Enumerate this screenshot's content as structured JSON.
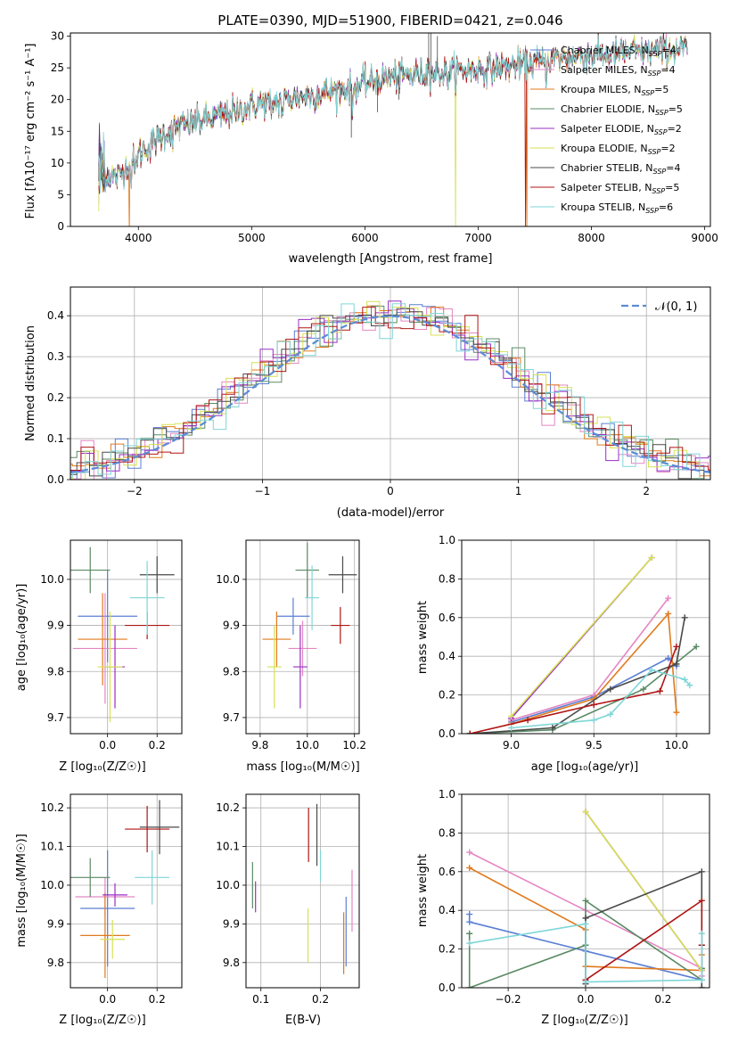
{
  "chart_data": [
    {
      "type": "line",
      "id": "spectrum",
      "title": "PLATE=0390, MJD=51900, FIBERID=0421, z=0.046",
      "xlabel": "wavelength [Angstrom, rest frame]",
      "ylabel": "Flux [fλ10⁻¹⁷ erg cm⁻² s⁻¹ A⁻¹]",
      "xlim": [
        3400,
        9050
      ],
      "ylim": [
        0,
        30.5
      ],
      "xticks": [
        "4000",
        "5000",
        "6000",
        "7000",
        "8000",
        "9000"
      ],
      "yticks": [
        "0",
        "5",
        "10",
        "15",
        "20",
        "25",
        "30"
      ],
      "legend_position": "upper-right",
      "series": [
        {
          "name": "Chabrier MILES, N_SSP=4",
          "label": "Chabrier MILES, N",
          "sub": "SSP",
          "suffix": "=4",
          "color": "#5b7fd4"
        },
        {
          "name": "Salpeter MILES, N_SSP=4",
          "label": "Salpeter MILES, N",
          "sub": "SSP",
          "suffix": "=4",
          "color": "#e387c3"
        },
        {
          "name": "Kroupa MILES, N_SSP=5",
          "label": "Kroupa MILES, N",
          "sub": "SSP",
          "suffix": "=5",
          "color": "#e07b1e"
        },
        {
          "name": "Chabrier ELODIE, N_SSP=5",
          "label": "Chabrier ELODIE, N",
          "sub": "SSP",
          "suffix": "=5",
          "color": "#5a8a64"
        },
        {
          "name": "Salpeter ELODIE, N_SSP=2",
          "label": "Salpeter ELODIE, N",
          "sub": "SSP",
          "suffix": "=2",
          "color": "#9a2fc5"
        },
        {
          "name": "Kroupa ELODIE, N_SSP=2",
          "label": "Kroupa ELODIE, N",
          "sub": "SSP",
          "suffix": "=2",
          "color": "#d6e253"
        },
        {
          "name": "Chabrier STELIB, N_SSP=4",
          "label": "Chabrier STELIB, N",
          "sub": "SSP",
          "suffix": "=4",
          "color": "#4a4a4a"
        },
        {
          "name": "Salpeter STELIB, N_SSP=5",
          "label": "Salpeter STELIB, N",
          "sub": "SSP",
          "suffix": "=5",
          "color": "#b01515"
        },
        {
          "name": "Kroupa STELIB, N_SSP=6",
          "label": "Kroupa STELIB, N",
          "sub": "SSP",
          "suffix": "=6",
          "color": "#7fd6d8"
        }
      ],
      "continuum_anchor_points": [
        [
          3650,
          9
        ],
        [
          3800,
          7.5
        ],
        [
          3950,
          10.5
        ],
        [
          4100,
          13
        ],
        [
          4300,
          15.5
        ],
        [
          4500,
          16.5
        ],
        [
          4750,
          17.5
        ],
        [
          5000,
          19
        ],
        [
          5300,
          20
        ],
        [
          5600,
          21
        ],
        [
          5900,
          22
        ],
        [
          6200,
          23.5
        ],
        [
          6500,
          24
        ],
        [
          6800,
          24.5
        ],
        [
          7100,
          25
        ],
        [
          7400,
          25.5
        ],
        [
          7700,
          26.5
        ],
        [
          8000,
          27
        ],
        [
          8400,
          27.5
        ],
        [
          8850,
          28
        ]
      ],
      "model_cutoffs": [
        {
          "model": "Salpeter STELIB",
          "x": 7420
        },
        {
          "model": "Kroupa MILES",
          "x": 7430
        },
        {
          "model": "Kroupa ELODIE",
          "x": 6800
        },
        {
          "model": "Kroupa MILES blue",
          "x": 3920
        }
      ]
    },
    {
      "type": "step",
      "id": "residuals",
      "xlabel": "(data-model)/error",
      "ylabel": "Normed distribution",
      "xlim": [
        -2.5,
        2.5
      ],
      "ylim": [
        0,
        0.47
      ],
      "xticks": [
        "−2",
        "−1",
        "0",
        "1",
        "2"
      ],
      "yticks": [
        "0.0",
        "0.1",
        "0.2",
        "0.3",
        "0.4"
      ],
      "legend": "𝒩(0, 1)",
      "reference_curve": {
        "name": "N(0,1)",
        "mean": 0,
        "sigma": 1,
        "color": "#5b8bd6"
      },
      "bin_width": 0.1
    },
    {
      "type": "errorbar",
      "id": "age-vs-Z",
      "xlabel": "Z [log₁₀(Z/Z☉)]",
      "ylabel": "age  [log₁₀(age/yr)]",
      "xlim": [
        -0.15,
        0.3
      ],
      "ylim": [
        9.665,
        10.085
      ],
      "xticks": [
        {
          "v": 0.0,
          "t": "0.0"
        },
        {
          "v": 0.2,
          "t": "0.2"
        }
      ],
      "yticks": [
        {
          "v": 9.7,
          "t": "9.7"
        },
        {
          "v": 9.8,
          "t": "9.8"
        },
        {
          "v": 9.9,
          "t": "9.9"
        },
        {
          "v": 10.0,
          "t": "10.0"
        }
      ],
      "points": [
        {
          "m": 0,
          "x": 0.0,
          "xe": 0.12,
          "y": 9.92,
          "ye": 0.1
        },
        {
          "m": 1,
          "x": -0.01,
          "xe": 0.13,
          "y": 9.85,
          "ye": 0.12
        },
        {
          "m": 2,
          "x": -0.02,
          "xe": 0.1,
          "y": 9.87,
          "ye": 0.1
        },
        {
          "m": 3,
          "x": -0.07,
          "xe": 0.08,
          "y": 10.02,
          "ye": 0.05
        },
        {
          "m": 4,
          "x": 0.03,
          "xe": 0.04,
          "y": 9.81,
          "ye": 0.09
        },
        {
          "m": 5,
          "x": 0.01,
          "xe": 0.05,
          "y": 9.81,
          "ye": 0.12
        },
        {
          "m": 6,
          "x": 0.2,
          "xe": 0.07,
          "y": 10.01,
          "ye": 0.04
        },
        {
          "m": 7,
          "x": 0.16,
          "xe": 0.09,
          "y": 9.9,
          "ye": 0.03
        },
        {
          "m": 8,
          "x": 0.16,
          "xe": 0.07,
          "y": 9.96,
          "ye": 0.08
        }
      ]
    },
    {
      "type": "errorbar",
      "id": "age-vs-mass",
      "xlabel": "mass [log₁₀(M/M☉)]",
      "ylabel": "",
      "xlim": [
        9.74,
        10.22
      ],
      "ylim": [
        9.665,
        10.085
      ],
      "xticks": [
        {
          "v": 9.8,
          "t": "9.8"
        },
        {
          "v": 10.0,
          "t": "10.0"
        },
        {
          "v": 10.2,
          "t": "10.2"
        }
      ],
      "yticks": [
        {
          "v": 9.7,
          "t": "9.7"
        },
        {
          "v": 9.8,
          "t": "9.8"
        },
        {
          "v": 9.9,
          "t": "9.9"
        },
        {
          "v": 10.0,
          "t": "10.0"
        }
      ],
      "points": [
        {
          "m": 0,
          "x": 9.94,
          "xe": 0.07,
          "y": 9.92,
          "ye": 0.04
        },
        {
          "m": 1,
          "x": 9.98,
          "xe": 0.06,
          "y": 9.85,
          "ye": 0.06
        },
        {
          "m": 2,
          "x": 9.87,
          "xe": 0.06,
          "y": 9.87,
          "ye": 0.06
        },
        {
          "m": 3,
          "x": 10.0,
          "xe": 0.05,
          "y": 10.02,
          "ye": 0.06
        },
        {
          "m": 4,
          "x": 9.97,
          "xe": 0.03,
          "y": 9.81,
          "ye": 0.09
        },
        {
          "m": 5,
          "x": 9.86,
          "xe": 0.03,
          "y": 9.81,
          "ye": 0.09
        },
        {
          "m": 6,
          "x": 10.15,
          "xe": 0.06,
          "y": 10.01,
          "ye": 0.04
        },
        {
          "m": 7,
          "x": 10.14,
          "xe": 0.04,
          "y": 9.9,
          "ye": 0.04
        },
        {
          "m": 8,
          "x": 10.02,
          "xe": 0.03,
          "y": 9.96,
          "ye": 0.07
        }
      ]
    },
    {
      "type": "line",
      "id": "mass-weight-vs-age",
      "xlabel": "age  [log₁₀(age/yr)]",
      "ylabel": "mass weight",
      "xlim": [
        8.7,
        10.2
      ],
      "ylim": [
        0,
        1.0
      ],
      "xticks": [
        {
          "v": 9.0,
          "t": "9.0"
        },
        {
          "v": 9.5,
          "t": "9.5"
        },
        {
          "v": 10.0,
          "t": "10.0"
        }
      ],
      "yticks": [
        {
          "v": 0,
          "t": "0.0"
        },
        {
          "v": 0.2,
          "t": "0.2"
        },
        {
          "v": 0.4,
          "t": "0.4"
        },
        {
          "v": 0.6,
          "t": "0.6"
        },
        {
          "v": 0.8,
          "t": "0.8"
        },
        {
          "v": 1.0,
          "t": "1.0"
        }
      ],
      "series": [
        {
          "m": 0,
          "x": [
            9.0,
            9.5,
            9.95,
            10.0
          ],
          "y": [
            0.06,
            0.19,
            0.39,
            0.35
          ]
        },
        {
          "m": 1,
          "x": [
            9.0,
            9.5,
            9.95
          ],
          "y": [
            0.07,
            0.2,
            0.7
          ]
        },
        {
          "m": 2,
          "x": [
            9.0,
            9.5,
            9.95,
            10.0
          ],
          "y": [
            0.05,
            0.18,
            0.62,
            0.11
          ]
        },
        {
          "m": 3,
          "x": [
            8.75,
            9.25,
            9.8,
            10.12
          ],
          "y": [
            0.0,
            0.02,
            0.23,
            0.45
          ]
        },
        {
          "m": 4,
          "x": [
            9.0,
            9.85
          ],
          "y": [
            0.08,
            0.91
          ]
        },
        {
          "m": 5,
          "x": [
            9.0,
            9.85
          ],
          "y": [
            0.09,
            0.91
          ]
        },
        {
          "m": 6,
          "x": [
            8.75,
            9.25,
            9.6,
            10.0,
            10.05
          ],
          "y": [
            0.0,
            0.03,
            0.23,
            0.36,
            0.6
          ]
        },
        {
          "m": 7,
          "x": [
            8.75,
            9.1,
            9.5,
            9.9,
            10.0
          ],
          "y": [
            0.0,
            0.07,
            0.15,
            0.22,
            0.45
          ]
        },
        {
          "m": 8,
          "x": [
            9.0,
            9.5,
            9.6,
            9.85,
            10.05,
            10.08
          ],
          "y": [
            0.03,
            0.07,
            0.1,
            0.33,
            0.28,
            0.25
          ]
        }
      ]
    },
    {
      "type": "errorbar",
      "id": "mass-vs-Z",
      "xlabel": "Z [log₁₀(Z/Z☉)]",
      "ylabel": "mass [log₁₀(M/M☉)]",
      "xlim": [
        -0.15,
        0.3
      ],
      "ylim": [
        9.735,
        10.235
      ],
      "xticks": [
        {
          "v": 0.0,
          "t": "0.0"
        },
        {
          "v": 0.2,
          "t": "0.2"
        }
      ],
      "yticks": [
        {
          "v": 9.8,
          "t": "9.8"
        },
        {
          "v": 9.9,
          "t": "9.9"
        },
        {
          "v": 10.0,
          "t": "10.0"
        },
        {
          "v": 10.1,
          "t": "10.1"
        },
        {
          "v": 10.2,
          "t": "10.2"
        }
      ],
      "points": [
        {
          "m": 0,
          "x": 0.0,
          "xe": 0.11,
          "y": 9.94,
          "ye": 0.15
        },
        {
          "m": 1,
          "x": -0.01,
          "xe": 0.12,
          "y": 9.97,
          "ye": 0.05
        },
        {
          "m": 2,
          "x": -0.01,
          "xe": 0.1,
          "y": 9.87,
          "ye": 0.11
        },
        {
          "m": 3,
          "x": -0.07,
          "xe": 0.08,
          "y": 10.02,
          "ye": 0.05
        },
        {
          "m": 4,
          "x": 0.03,
          "xe": 0.05,
          "y": 9.975,
          "ye": 0.03
        },
        {
          "m": 5,
          "x": 0.02,
          "xe": 0.05,
          "y": 9.86,
          "ye": 0.05
        },
        {
          "m": 6,
          "x": 0.21,
          "xe": 0.08,
          "y": 10.15,
          "ye": 0.07
        },
        {
          "m": 7,
          "x": 0.16,
          "xe": 0.09,
          "y": 10.145,
          "ye": 0.06
        },
        {
          "m": 8,
          "x": 0.18,
          "xe": 0.07,
          "y": 10.02,
          "ye": 0.07
        }
      ]
    },
    {
      "type": "errorbar",
      "id": "mass-vs-EBV",
      "xlabel": "E(B-V)",
      "ylabel": "",
      "xlim": [
        0.075,
        0.265
      ],
      "ylim": [
        9.735,
        10.235
      ],
      "xticks": [
        {
          "v": 0.1,
          "t": "0.1"
        },
        {
          "v": 0.2,
          "t": "0.2"
        }
      ],
      "yticks": [
        {
          "v": 9.8,
          "t": "9.8"
        },
        {
          "v": 9.9,
          "t": "9.9"
        },
        {
          "v": 10.0,
          "t": "10.0"
        },
        {
          "v": 10.1,
          "t": "10.1"
        },
        {
          "v": 10.2,
          "t": "10.2"
        }
      ],
      "points": [
        {
          "m": 0,
          "x": 0.243,
          "xe": 0,
          "y": 9.88,
          "ye": 0.09
        },
        {
          "m": 1,
          "x": 0.253,
          "xe": 0,
          "y": 9.96,
          "ye": 0.08
        },
        {
          "m": 2,
          "x": 0.239,
          "xe": 0,
          "y": 9.85,
          "ye": 0.08
        },
        {
          "m": 3,
          "x": 0.086,
          "xe": 0,
          "y": 10.0,
          "ye": 0.06
        },
        {
          "m": 4,
          "x": 0.091,
          "xe": 0,
          "y": 9.97,
          "ye": 0.04
        },
        {
          "m": 5,
          "x": 0.179,
          "xe": 0,
          "y": 9.87,
          "ye": 0.07
        },
        {
          "m": 6,
          "x": 0.194,
          "xe": 0,
          "y": 10.13,
          "ye": 0.08
        },
        {
          "m": 7,
          "x": 0.18,
          "xe": 0,
          "y": 10.13,
          "ye": 0.07
        },
        {
          "m": 8,
          "x": 0.2,
          "xe": 0,
          "y": 10.05,
          "ye": 0.04
        }
      ]
    },
    {
      "type": "line",
      "id": "mass-weight-vs-Z",
      "xlabel": "Z [log₁₀(Z/Z☉)]",
      "ylabel": "mass weight",
      "xlim": [
        -0.32,
        0.32
      ],
      "ylim": [
        0,
        1.0
      ],
      "xticks": [
        {
          "v": -0.2,
          "t": "−0.2"
        },
        {
          "v": 0.0,
          "t": "0.0"
        },
        {
          "v": 0.2,
          "t": "0.2"
        }
      ],
      "yticks": [
        {
          "v": 0,
          "t": "0.0"
        },
        {
          "v": 0.2,
          "t": "0.2"
        },
        {
          "v": 0.4,
          "t": "0.4"
        },
        {
          "v": 0.6,
          "t": "0.6"
        },
        {
          "v": 0.8,
          "t": "0.8"
        },
        {
          "v": 1.0,
          "t": "1.0"
        }
      ],
      "series": [
        {
          "m": 0,
          "x": [
            -0.3,
            -0.3,
            0.0,
            0.3,
            0.3
          ],
          "y": [
            0.38,
            0.34,
            0.19,
            0.04,
            0.22
          ]
        },
        {
          "m": 1,
          "x": [
            -0.3,
            0.0,
            0.3,
            0.3
          ],
          "y": [
            0.7,
            0.4,
            0.1,
            0.06
          ]
        },
        {
          "m": 2,
          "x": [
            -0.3,
            0.0,
            0.0,
            0.3,
            0.3
          ],
          "y": [
            0.62,
            0.3,
            0.11,
            0.09,
            0.17
          ]
        },
        {
          "m": 3,
          "x": [
            -0.3,
            -0.3,
            0.0,
            0.0,
            0.3,
            0.3
          ],
          "y": [
            0.28,
            0.0,
            0.22,
            0.45,
            0.04,
            0.1
          ]
        },
        {
          "m": 4,
          "x": [
            0.0,
            0.3
          ],
          "y": [
            0.91,
            0.09
          ]
        },
        {
          "m": 5,
          "x": [
            0.0,
            0.3
          ],
          "y": [
            0.91,
            0.09
          ]
        },
        {
          "m": 6,
          "x": [
            0.0,
            0.0,
            0.3,
            0.3
          ],
          "y": [
            0.02,
            0.36,
            0.6,
            0.0
          ]
        },
        {
          "m": 7,
          "x": [
            0.0,
            0.3,
            0.3
          ],
          "y": [
            0.04,
            0.45,
            0.22
          ]
        },
        {
          "m": 8,
          "x": [
            -0.3,
            0.0,
            0.0,
            0.3,
            0.3
          ],
          "y": [
            0.23,
            0.33,
            0.03,
            0.04,
            0.28
          ]
        }
      ]
    }
  ]
}
